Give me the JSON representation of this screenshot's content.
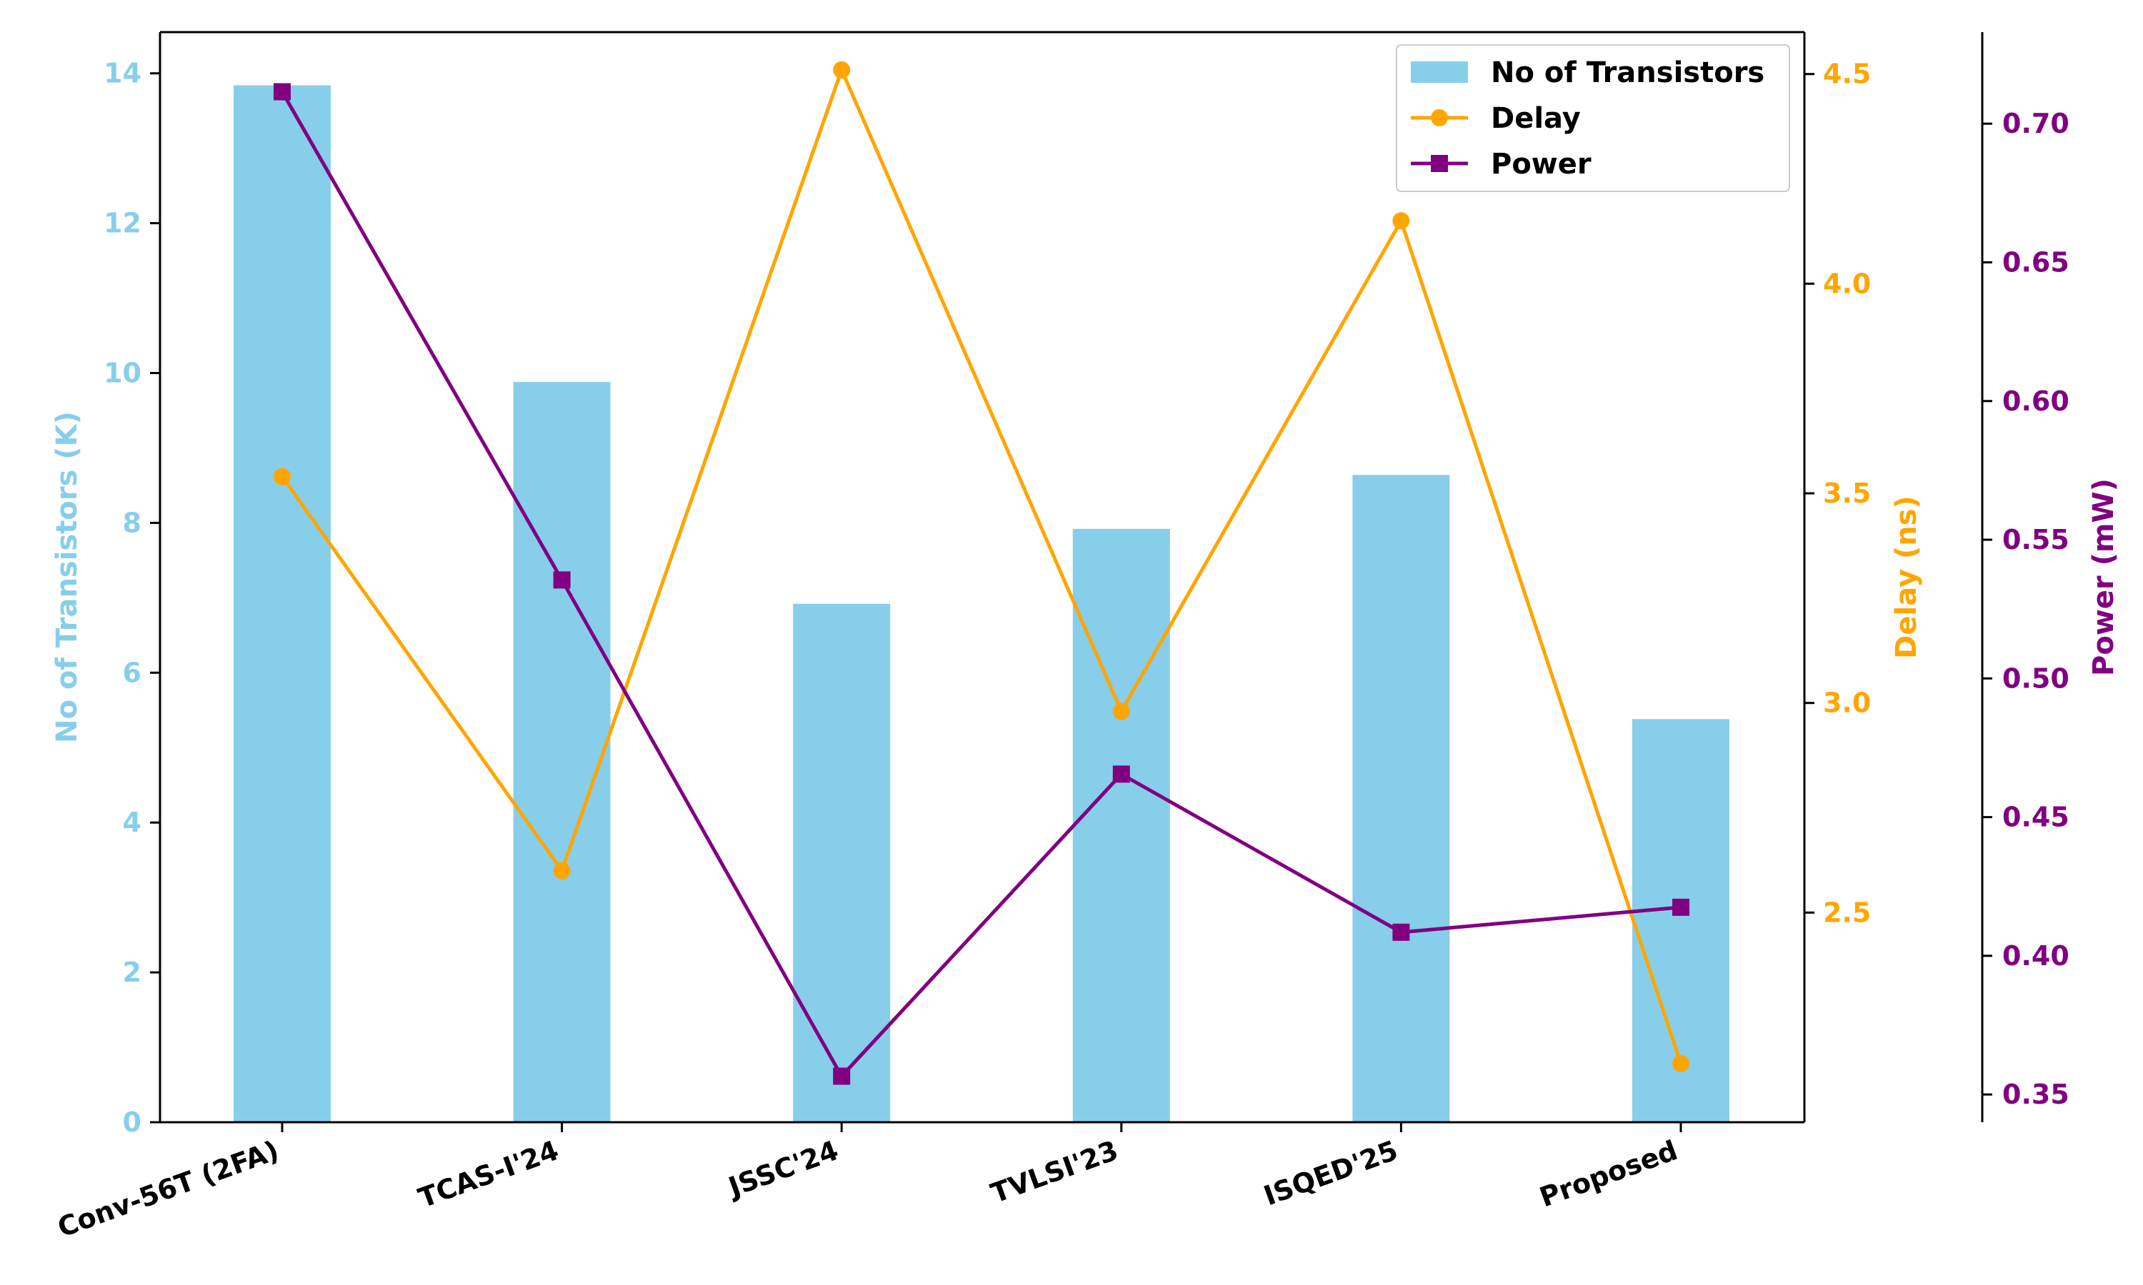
{
  "chart_data": {
    "type": "bar+line",
    "categories": [
      "Conv-56T (2FA)",
      "TCAS-I'24",
      "JSSC'24",
      "TVLSI'23",
      "ISQED'25",
      "Proposed"
    ],
    "series": [
      {
        "name": "No of Transistors",
        "kind": "bar",
        "axis": "left",
        "color": "#87CEEB",
        "values": [
          13.84,
          9.88,
          6.92,
          7.92,
          8.64,
          5.38
        ]
      },
      {
        "name": "Delay",
        "kind": "line",
        "axis": "right",
        "marker": "circle",
        "color": "#FFA500",
        "values": [
          3.54,
          2.6,
          4.51,
          2.98,
          4.15,
          2.14
        ]
      },
      {
        "name": "Power",
        "kind": "line",
        "axis": "right2",
        "marker": "square",
        "color": "#800080",
        "values": [
          0.7115,
          0.5355,
          0.3566,
          0.4655,
          0.4085,
          0.4175
        ]
      }
    ],
    "axes": {
      "left": {
        "label": "No of Transistors (K)",
        "ylim": [
          0,
          14.55
        ],
        "ticks": [
          "0",
          "2",
          "4",
          "6",
          "8",
          "10",
          "12",
          "14"
        ],
        "color": "#87CEEB"
      },
      "right": {
        "label": "Delay (ns)",
        "ylim": [
          2.0,
          4.6
        ],
        "ticks": [
          "2.5",
          "3.0",
          "3.5",
          "4.0",
          "4.5"
        ],
        "color": "#FFA500"
      },
      "right2": {
        "label": "Power (mW)",
        "ylim": [
          0.34,
          0.733
        ],
        "ticks": [
          "0.35",
          "0.40",
          "0.45",
          "0.50",
          "0.55",
          "0.60",
          "0.65",
          "0.70"
        ],
        "color": "#800080"
      }
    },
    "legend": {
      "placement": "top-right",
      "entries": [
        "No of Transistors",
        "Delay",
        "Power"
      ]
    }
  }
}
